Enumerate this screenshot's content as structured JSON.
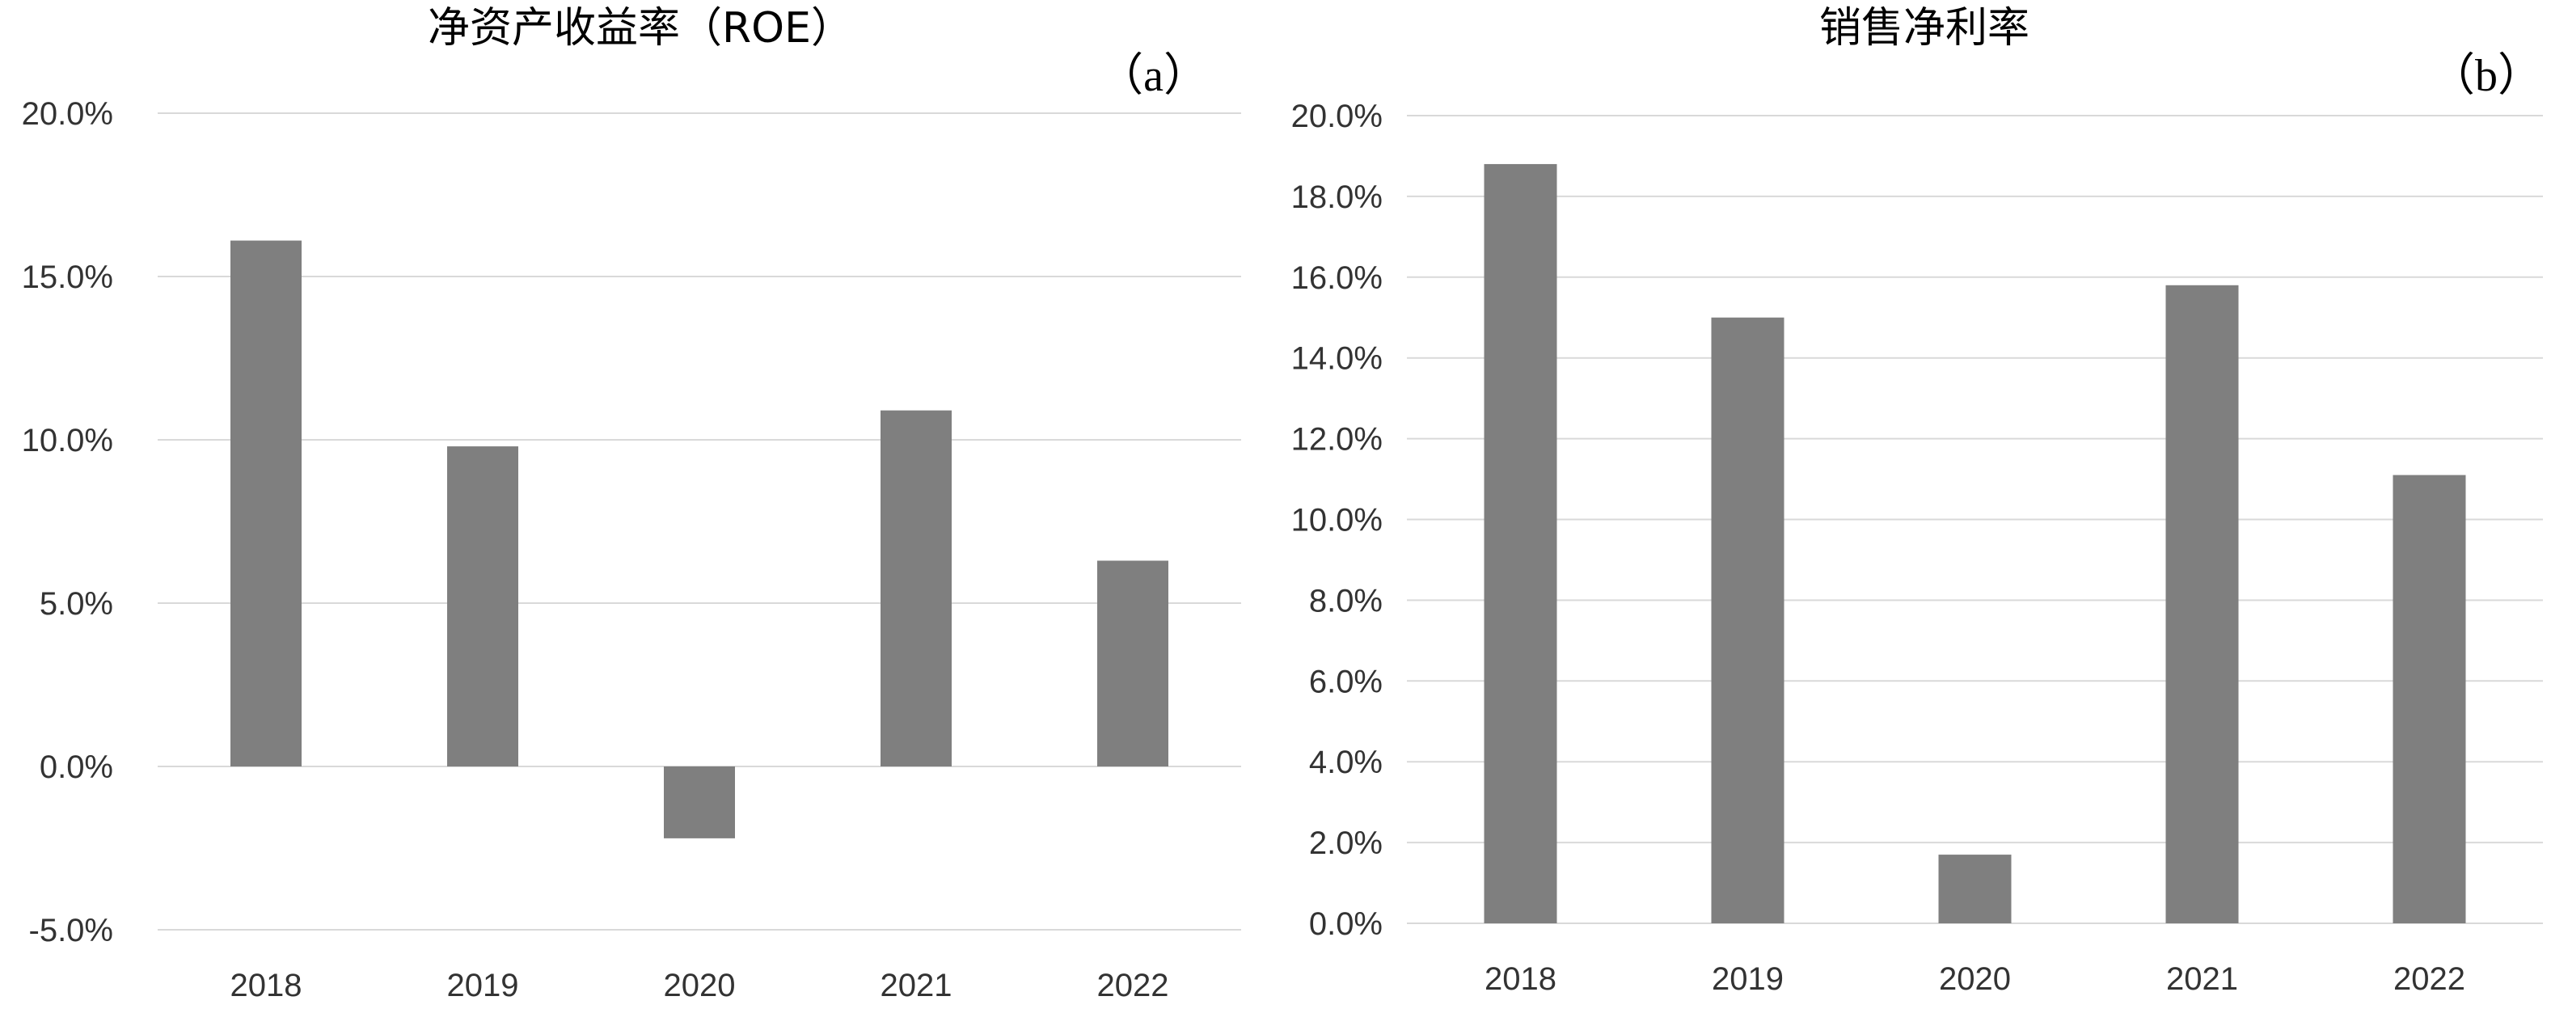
{
  "chart_data": [
    {
      "type": "bar",
      "title": "净资产收益率（ROE）",
      "panel_label": "（a）",
      "categories": [
        "2018",
        "2019",
        "2020",
        "2021",
        "2022"
      ],
      "values": [
        16.1,
        9.8,
        -2.2,
        10.9,
        6.3
      ],
      "ylim": [
        -5,
        20
      ],
      "yticks": [
        "-5.0%",
        "0.0%",
        "5.0%",
        "10.0%",
        "15.0%",
        "20.0%"
      ],
      "y_unit": "percent",
      "bar_color": "#7f7f7f",
      "grid": true,
      "legend": "none"
    },
    {
      "type": "bar",
      "title": "销售净利率",
      "panel_label": "（b）",
      "categories": [
        "2018",
        "2019",
        "2020",
        "2021",
        "2022"
      ],
      "values": [
        18.8,
        15.0,
        1.7,
        15.8,
        11.1
      ],
      "ylim": [
        0,
        20
      ],
      "yticks": [
        "0.0%",
        "2.0%",
        "4.0%",
        "6.0%",
        "8.0%",
        "10.0%",
        "12.0%",
        "14.0%",
        "16.0%",
        "18.0%",
        "20.0%"
      ],
      "y_unit": "percent",
      "bar_color": "#7f7f7f",
      "grid": true,
      "legend": "none"
    }
  ]
}
